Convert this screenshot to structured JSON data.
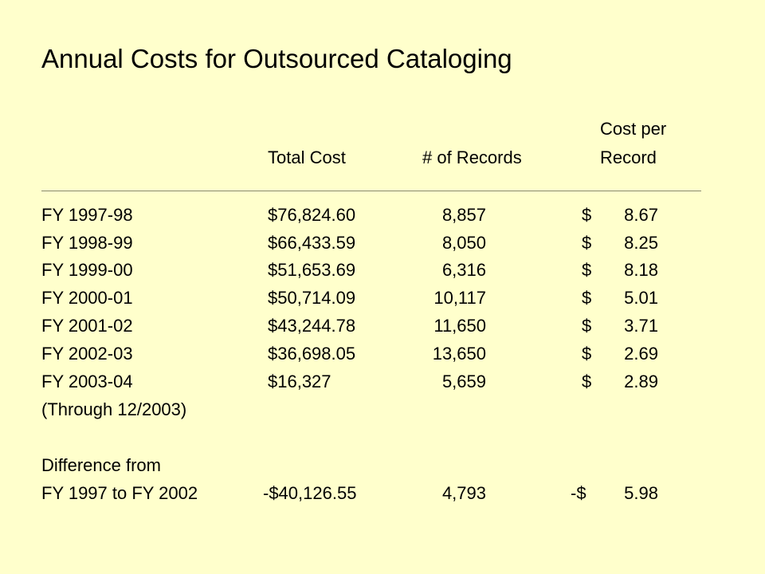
{
  "title": "Annual Costs for Outsourced Cataloging",
  "headers": {
    "total_cost": "Total Cost",
    "records": "# of Records",
    "cost_per_line1": "Cost per",
    "cost_per_line2": "Record"
  },
  "rows": [
    {
      "label": "FY 1997-98",
      "total": "$76,824.60",
      "records": "8,857",
      "cpr_sign": "$",
      "cpr": "8.67"
    },
    {
      "label": "FY 1998-99",
      "total": "$66,433.59",
      "records": "8,050",
      "cpr_sign": "$",
      "cpr": "8.25"
    },
    {
      "label": "FY 1999-00",
      "total": "$51,653.69",
      "records": "6,316",
      "cpr_sign": "$",
      "cpr": "8.18"
    },
    {
      "label": "FY 2000-01",
      "total": "$50,714.09",
      "records": "10,117",
      "cpr_sign": "$",
      "cpr": "5.01"
    },
    {
      "label": "FY 2001-02",
      "total": "$43,244.78",
      "records": "11,650",
      "cpr_sign": "$",
      "cpr": "3.71"
    },
    {
      "label": "FY 2002-03",
      "total": "$36,698.05",
      "records": "13,650",
      "cpr_sign": "$",
      "cpr": "2.69"
    },
    {
      "label": "FY 2003-04",
      "total": "$16,327",
      "records": "5,659",
      "cpr_sign": "$",
      "cpr": "2.89"
    }
  ],
  "note": "(Through 12/2003)",
  "difference": {
    "label_line1": "Difference from",
    "label_line2": "FY 1997 to FY 2002",
    "total": "-$40,126.55",
    "records": "4,793",
    "cpr_sign": "-$",
    "cpr": "5.98"
  }
}
